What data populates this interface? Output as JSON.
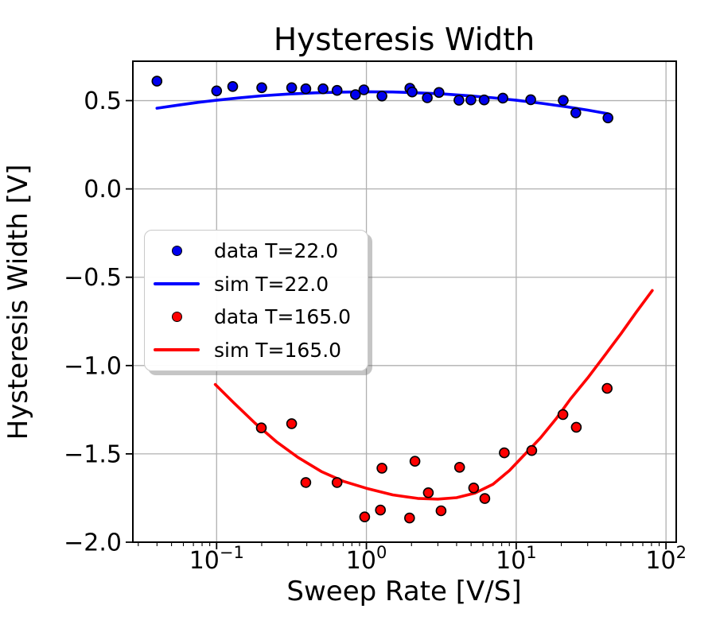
{
  "chart_data": {
    "type": "scatter",
    "title": "Hysteresis Width",
    "xlabel": "Sweep Rate [V/S]",
    "ylabel": "Hysteresis Width [V]",
    "x_scale": "log",
    "y_scale": "linear",
    "xlim": [
      0.0276,
      117
    ],
    "ylim": [
      -2.0,
      0.723
    ],
    "grid": true,
    "x_ticks": [
      {
        "value": 0.1,
        "mantissa": "10",
        "exponent": "−1"
      },
      {
        "value": 1,
        "mantissa": "10",
        "exponent": "0"
      },
      {
        "value": 10,
        "mantissa": "10",
        "exponent": "1"
      },
      {
        "value": 100,
        "mantissa": "10",
        "exponent": "2"
      }
    ],
    "y_ticks": [
      {
        "value": 0.5,
        "label": "0.5"
      },
      {
        "value": 0.0,
        "label": "0.0"
      },
      {
        "value": -0.5,
        "label": "−0.5"
      },
      {
        "value": -1.0,
        "label": "−1.0"
      },
      {
        "value": -1.5,
        "label": "−1.5"
      },
      {
        "value": -2.0,
        "label": "−2.0"
      }
    ],
    "series": [
      {
        "name": "data T=22.0",
        "type": "scatter",
        "color": "#0000ee",
        "edge": "#000000",
        "points": [
          [
            0.04,
            0.61
          ],
          [
            0.1,
            0.555
          ],
          [
            0.128,
            0.58
          ],
          [
            0.2,
            0.573
          ],
          [
            0.317,
            0.573
          ],
          [
            0.394,
            0.567
          ],
          [
            0.514,
            0.567
          ],
          [
            0.637,
            0.558
          ],
          [
            0.845,
            0.534
          ],
          [
            0.962,
            0.561
          ],
          [
            1.27,
            0.526
          ],
          [
            1.95,
            0.57
          ],
          [
            2.02,
            0.549
          ],
          [
            2.55,
            0.516
          ],
          [
            3.05,
            0.546
          ],
          [
            4.15,
            0.502
          ],
          [
            4.98,
            0.504
          ],
          [
            6.11,
            0.504
          ],
          [
            8.15,
            0.514
          ],
          [
            12.5,
            0.505
          ],
          [
            20.6,
            0.501
          ],
          [
            25.0,
            0.431
          ],
          [
            41.0,
            0.402
          ]
        ]
      },
      {
        "name": "sim T=22.0",
        "type": "line",
        "color": "#0000ff",
        "points": [
          [
            0.04,
            0.457
          ],
          [
            0.055,
            0.474
          ],
          [
            0.075,
            0.49
          ],
          [
            0.1,
            0.502
          ],
          [
            0.14,
            0.515
          ],
          [
            0.2,
            0.527
          ],
          [
            0.3,
            0.537
          ],
          [
            0.45,
            0.544
          ],
          [
            0.65,
            0.548
          ],
          [
            1.0,
            0.55
          ],
          [
            1.5,
            0.549
          ],
          [
            2.2,
            0.544
          ],
          [
            3.2,
            0.538
          ],
          [
            4.7,
            0.528
          ],
          [
            7.0,
            0.516
          ],
          [
            10.0,
            0.502
          ],
          [
            15.0,
            0.484
          ],
          [
            22.0,
            0.464
          ],
          [
            30.0,
            0.446
          ],
          [
            41.0,
            0.426
          ]
        ]
      },
      {
        "name": "data T=165.0",
        "type": "scatter",
        "color": "#ff0000",
        "edge": "#000000",
        "points": [
          [
            0.199,
            -1.353
          ],
          [
            0.317,
            -1.329
          ],
          [
            0.394,
            -1.662
          ],
          [
            0.637,
            -1.662
          ],
          [
            0.974,
            -1.857
          ],
          [
            1.24,
            -1.818
          ],
          [
            1.27,
            -1.581
          ],
          [
            1.94,
            -1.863
          ],
          [
            2.11,
            -1.542
          ],
          [
            2.59,
            -1.72
          ],
          [
            3.15,
            -1.822
          ],
          [
            4.19,
            -1.576
          ],
          [
            5.2,
            -1.693
          ],
          [
            6.17,
            -1.753
          ],
          [
            8.33,
            -1.494
          ],
          [
            12.7,
            -1.481
          ],
          [
            20.5,
            -1.277
          ],
          [
            25.2,
            -1.349
          ],
          [
            40.5,
            -1.129
          ]
        ]
      },
      {
        "name": "sim T=165.0",
        "type": "line",
        "color": "#ff0000",
        "points": [
          [
            0.098,
            -1.107
          ],
          [
            0.13,
            -1.21
          ],
          [
            0.18,
            -1.325
          ],
          [
            0.25,
            -1.43
          ],
          [
            0.35,
            -1.52
          ],
          [
            0.5,
            -1.6
          ],
          [
            0.7,
            -1.655
          ],
          [
            1.0,
            -1.695
          ],
          [
            1.5,
            -1.732
          ],
          [
            2.2,
            -1.752
          ],
          [
            3.0,
            -1.756
          ],
          [
            4.0,
            -1.748
          ],
          [
            5.3,
            -1.722
          ],
          [
            7.0,
            -1.672
          ],
          [
            9.0,
            -1.595
          ],
          [
            11.5,
            -1.5
          ],
          [
            14.5,
            -1.41
          ],
          [
            18.5,
            -1.3
          ],
          [
            23.0,
            -1.19
          ],
          [
            30.0,
            -1.07
          ],
          [
            40.0,
            -0.93
          ],
          [
            50.0,
            -0.82
          ],
          [
            63.0,
            -0.7
          ],
          [
            81.0,
            -0.575
          ]
        ]
      }
    ],
    "legend": {
      "position": "center-left",
      "items": [
        {
          "label": "data T=22.0",
          "marker": "dot",
          "color": "#0000ee"
        },
        {
          "label": "sim T=22.0",
          "marker": "line",
          "color": "#0000ff"
        },
        {
          "label": "data T=165.0",
          "marker": "dot",
          "color": "#ff0000"
        },
        {
          "label": "sim T=165.0",
          "marker": "line",
          "color": "#ff0000"
        }
      ]
    },
    "colors": {
      "grid": "#b0b0b0",
      "axes": "#000000",
      "background": "#ffffff"
    }
  }
}
